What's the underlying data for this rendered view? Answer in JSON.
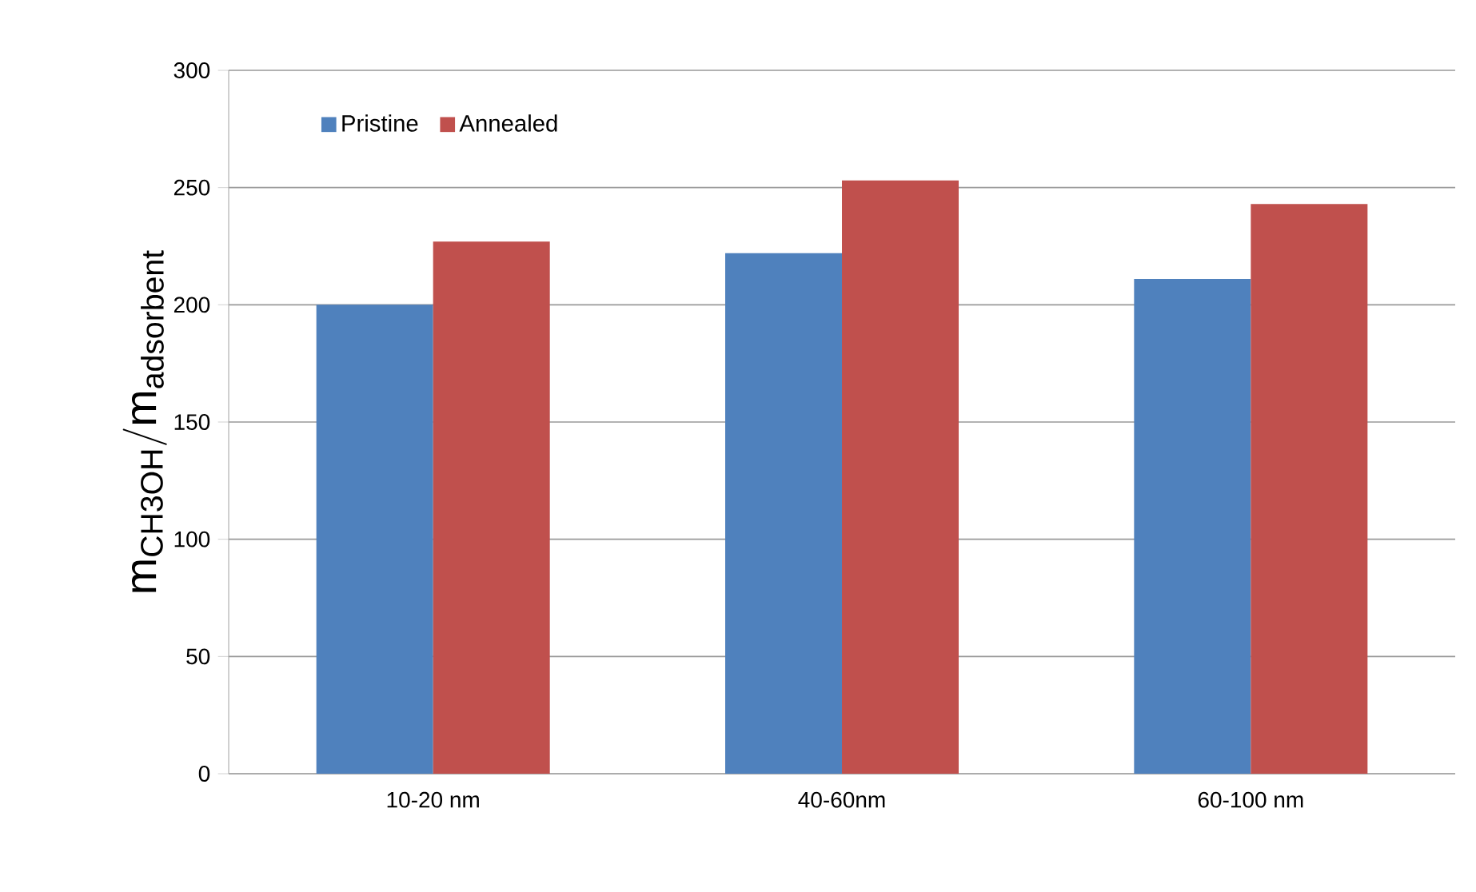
{
  "chart_data": {
    "type": "bar",
    "ylabel": "\\mathrm{m_{CH3OH}/m_{adsorbent}}",
    "categories": [
      "10-20 nm",
      "40-60nm",
      "60-100 nm"
    ],
    "series": [
      {
        "name": "Pristine",
        "color": "#4f81bd",
        "values": [
          200,
          222,
          211
        ]
      },
      {
        "name": "Annealed",
        "color": "#c0504d",
        "values": [
          227,
          253,
          243
        ]
      }
    ],
    "ylim": [
      0,
      300
    ],
    "yticks": [
      0,
      50,
      100,
      150,
      200,
      250,
      300
    ],
    "grid": "y",
    "legend": "top left"
  }
}
